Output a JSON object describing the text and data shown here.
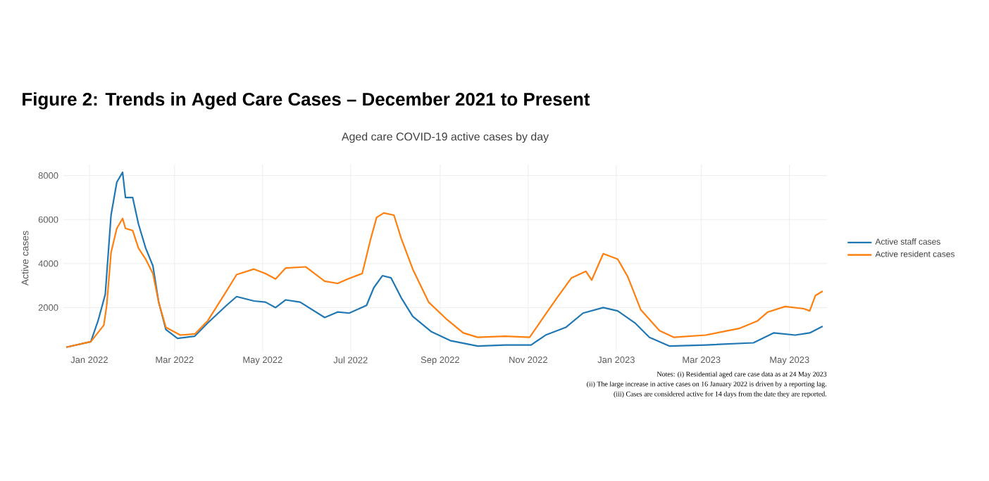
{
  "chart_data": {
    "type": "line",
    "title": "Figure 2: Trends in Aged Care Cases – December 2021 to Present",
    "subtitle": "Aged care COVID-19 active cases by day",
    "ylabel": "Active cases",
    "xlim": [
      "2021-12-14",
      "2023-05-27"
    ],
    "ylim": [
      0,
      8500
    ],
    "yticks": [
      2000,
      4000,
      6000,
      8000
    ],
    "xticks": [
      {
        "value": "2022-01-01",
        "label": "Jan 2022"
      },
      {
        "value": "2022-03-01",
        "label": "Mar 2022"
      },
      {
        "value": "2022-05-01",
        "label": "May 2022"
      },
      {
        "value": "2022-07-01",
        "label": "Jul 2022"
      },
      {
        "value": "2022-09-01",
        "label": "Sep 2022"
      },
      {
        "value": "2022-11-01",
        "label": "Nov 2022"
      },
      {
        "value": "2023-01-01",
        "label": "Jan 2023"
      },
      {
        "value": "2023-03-01",
        "label": "Mar 2023"
      },
      {
        "value": "2023-05-01",
        "label": "May 2023"
      }
    ],
    "grid": true,
    "legend": "right",
    "series": [
      {
        "name": "Active staff cases",
        "color": "#1f77b4",
        "x": [
          "2021-12-16",
          "2022-01-02",
          "2022-01-07",
          "2022-01-12",
          "2022-01-16",
          "2022-01-20",
          "2022-01-24",
          "2022-01-26",
          "2022-01-31",
          "2022-02-04",
          "2022-02-09",
          "2022-02-14",
          "2022-02-18",
          "2022-02-23",
          "2022-03-03",
          "2022-03-15",
          "2022-03-24",
          "2022-04-06",
          "2022-04-13",
          "2022-04-25",
          "2022-05-03",
          "2022-05-10",
          "2022-05-17",
          "2022-05-27",
          "2022-06-13",
          "2022-06-22",
          "2022-06-30",
          "2022-07-12",
          "2022-07-17",
          "2022-07-23",
          "2022-07-29",
          "2022-08-05",
          "2022-08-13",
          "2022-08-26",
          "2022-09-08",
          "2022-09-27",
          "2022-10-16",
          "2022-11-03",
          "2022-11-13",
          "2022-11-27",
          "2022-12-09",
          "2022-12-23",
          "2023-01-02",
          "2023-01-14",
          "2023-01-24",
          "2023-02-07",
          "2023-03-04",
          "2023-04-06",
          "2023-04-20",
          "2023-05-05",
          "2023-05-15",
          "2023-05-24"
        ],
        "values": [
          200,
          450,
          1400,
          2600,
          6200,
          7700,
          8150,
          7000,
          7000,
          5800,
          4700,
          3900,
          2250,
          1000,
          600,
          700,
          1300,
          2100,
          2500,
          2300,
          2250,
          2000,
          2350,
          2250,
          1550,
          1800,
          1750,
          2100,
          2900,
          3450,
          3350,
          2450,
          1600,
          900,
          500,
          250,
          300,
          300,
          750,
          1100,
          1750,
          2000,
          1850,
          1300,
          650,
          250,
          300,
          400,
          850,
          750,
          850,
          1150
        ]
      },
      {
        "name": "Active resident cases",
        "color": "#ff7f0e",
        "x": [
          "2021-12-16",
          "2022-01-02",
          "2022-01-11",
          "2022-01-13",
          "2022-01-16",
          "2022-01-20",
          "2022-01-24",
          "2022-01-26",
          "2022-01-31",
          "2022-02-04",
          "2022-02-09",
          "2022-02-14",
          "2022-02-18",
          "2022-02-23",
          "2022-03-05",
          "2022-03-15",
          "2022-03-24",
          "2022-04-06",
          "2022-04-13",
          "2022-04-25",
          "2022-05-03",
          "2022-05-10",
          "2022-05-17",
          "2022-05-31",
          "2022-06-13",
          "2022-06-22",
          "2022-06-29",
          "2022-07-09",
          "2022-07-15",
          "2022-07-19",
          "2022-07-24",
          "2022-07-31",
          "2022-08-05",
          "2022-08-13",
          "2022-08-24",
          "2022-09-05",
          "2022-09-17",
          "2022-09-27",
          "2022-10-16",
          "2022-11-02",
          "2022-11-12",
          "2022-11-21",
          "2022-12-01",
          "2022-12-11",
          "2022-12-15",
          "2022-12-23",
          "2023-01-02",
          "2023-01-09",
          "2023-01-18",
          "2023-01-31",
          "2023-02-10",
          "2023-03-04",
          "2023-03-27",
          "2023-04-09",
          "2023-04-16",
          "2023-04-28",
          "2023-05-11",
          "2023-05-15",
          "2023-05-19",
          "2023-05-24"
        ],
        "values": [
          200,
          450,
          1200,
          2100,
          4500,
          5600,
          6050,
          5600,
          5500,
          4700,
          4200,
          3550,
          2250,
          1100,
          750,
          800,
          1400,
          2750,
          3500,
          3750,
          3550,
          3300,
          3800,
          3850,
          3200,
          3100,
          3300,
          3550,
          5150,
          6100,
          6300,
          6200,
          5150,
          3750,
          2250,
          1500,
          850,
          650,
          700,
          650,
          1600,
          2450,
          3350,
          3650,
          3250,
          4450,
          4200,
          3400,
          1900,
          950,
          650,
          750,
          1050,
          1400,
          1800,
          2050,
          1950,
          1850,
          2550,
          2750
        ]
      }
    ],
    "annotations": [
      "Notes: (i) Residential aged care case data as at 24 May 2023",
      "(ii) The large increase in active cases on 16 January 2022 is driven by a reporting lag.",
      "(iii) Cases are considered active for 14 days from the date they are reported."
    ]
  }
}
